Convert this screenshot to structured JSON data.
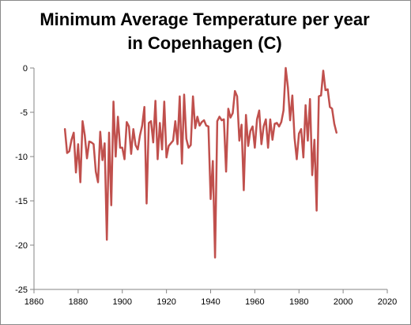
{
  "chart_data": {
    "type": "line",
    "title_lines": [
      "Minimum Average Temperature per year",
      "in Copenhagen (C)"
    ],
    "xlabel": "",
    "ylabel": "",
    "xlim": [
      1860,
      2020
    ],
    "ylim": [
      -25,
      0
    ],
    "x_ticks": [
      1860,
      1880,
      1900,
      1920,
      1940,
      1960,
      1980,
      2000,
      2020
    ],
    "y_ticks": [
      0,
      -5,
      -10,
      -15,
      -20,
      -25
    ],
    "grid": false,
    "legend": "none",
    "series": [
      {
        "color": "#c0504d",
        "points": [
          [
            1874,
            -6.9
          ],
          [
            1875,
            -9.6
          ],
          [
            1876,
            -9.4
          ],
          [
            1877,
            -8.1
          ],
          [
            1878,
            -7.3
          ],
          [
            1879,
            -11.8
          ],
          [
            1880,
            -8.6
          ],
          [
            1881,
            -12.9
          ],
          [
            1882,
            -6.0
          ],
          [
            1883,
            -7.6
          ],
          [
            1884,
            -10.2
          ],
          [
            1885,
            -8.3
          ],
          [
            1886,
            -8.4
          ],
          [
            1887,
            -8.6
          ],
          [
            1888,
            -11.7
          ],
          [
            1889,
            -12.9
          ],
          [
            1890,
            -7.2
          ],
          [
            1891,
            -10.4
          ],
          [
            1892,
            -8.5
          ],
          [
            1893,
            -19.4
          ],
          [
            1894,
            -7.3
          ],
          [
            1895,
            -15.5
          ],
          [
            1896,
            -3.8
          ],
          [
            1897,
            -10.0
          ],
          [
            1898,
            -5.5
          ],
          [
            1899,
            -9.0
          ],
          [
            1900,
            -9.0
          ],
          [
            1901,
            -10.3
          ],
          [
            1902,
            -6.1
          ],
          [
            1903,
            -6.6
          ],
          [
            1904,
            -9.7
          ],
          [
            1905,
            -6.9
          ],
          [
            1906,
            -8.7
          ],
          [
            1907,
            -9.2
          ],
          [
            1908,
            -7.6
          ],
          [
            1909,
            -6.5
          ],
          [
            1910,
            -4.4
          ],
          [
            1911,
            -15.3
          ],
          [
            1912,
            -6.2
          ],
          [
            1913,
            -6.0
          ],
          [
            1914,
            -8.4
          ],
          [
            1915,
            -3.7
          ],
          [
            1916,
            -10.3
          ],
          [
            1917,
            -6.2
          ],
          [
            1918,
            -9.2
          ],
          [
            1919,
            -3.8
          ],
          [
            1920,
            -10.1
          ],
          [
            1921,
            -8.8
          ],
          [
            1922,
            -8.5
          ],
          [
            1923,
            -8.2
          ],
          [
            1924,
            -6.0
          ],
          [
            1925,
            -8.6
          ],
          [
            1926,
            -3.2
          ],
          [
            1927,
            -10.8
          ],
          [
            1928,
            -3.0
          ],
          [
            1929,
            -8.0
          ],
          [
            1930,
            -9.0
          ],
          [
            1931,
            -8.7
          ],
          [
            1932,
            -3.2
          ],
          [
            1933,
            -6.8
          ],
          [
            1934,
            -5.5
          ],
          [
            1935,
            -6.5
          ],
          [
            1936,
            -6.1
          ],
          [
            1937,
            -5.9
          ],
          [
            1938,
            -6.5
          ],
          [
            1939,
            -6.6
          ],
          [
            1940,
            -14.8
          ],
          [
            1941,
            -10.5
          ],
          [
            1942,
            -21.4
          ],
          [
            1943,
            -6.0
          ],
          [
            1944,
            -5.5
          ],
          [
            1945,
            -5.9
          ],
          [
            1946,
            -5.8
          ],
          [
            1947,
            -11.7
          ],
          [
            1948,
            -4.6
          ],
          [
            1949,
            -5.6
          ],
          [
            1950,
            -5.1
          ],
          [
            1951,
            -2.6
          ],
          [
            1952,
            -3.2
          ],
          [
            1953,
            -8.2
          ],
          [
            1954,
            -6.4
          ],
          [
            1955,
            -13.8
          ],
          [
            1956,
            -5.3
          ],
          [
            1957,
            -8.8
          ],
          [
            1958,
            -7.1
          ],
          [
            1959,
            -6.6
          ],
          [
            1960,
            -9.0
          ],
          [
            1961,
            -5.8
          ],
          [
            1962,
            -4.8
          ],
          [
            1963,
            -8.6
          ],
          [
            1964,
            -6.6
          ],
          [
            1965,
            -5.8
          ],
          [
            1966,
            -9.0
          ],
          [
            1967,
            -5.8
          ],
          [
            1968,
            -8.1
          ],
          [
            1969,
            -6.3
          ],
          [
            1970,
            -6.2
          ],
          [
            1971,
            -6.6
          ],
          [
            1972,
            -6.1
          ],
          [
            1973,
            -4.8
          ],
          [
            1974,
            0.0
          ],
          [
            1975,
            -2.2
          ],
          [
            1976,
            -5.9
          ],
          [
            1977,
            -3.1
          ],
          [
            1978,
            -7.9
          ],
          [
            1979,
            -10.3
          ],
          [
            1980,
            -7.4
          ],
          [
            1981,
            -6.9
          ],
          [
            1982,
            -10.1
          ],
          [
            1983,
            -4.2
          ],
          [
            1984,
            -8.2
          ],
          [
            1985,
            -3.5
          ],
          [
            1986,
            -12.1
          ],
          [
            1987,
            -8.1
          ],
          [
            1988,
            -16.1
          ],
          [
            1989,
            -3.2
          ],
          [
            1990,
            -3.1
          ],
          [
            1991,
            -0.3
          ],
          [
            1992,
            -2.5
          ],
          [
            1993,
            -2.4
          ],
          [
            1994,
            -4.4
          ],
          [
            1995,
            -4.6
          ],
          [
            1996,
            -6.3
          ],
          [
            1997,
            -7.3
          ]
        ]
      }
    ]
  }
}
